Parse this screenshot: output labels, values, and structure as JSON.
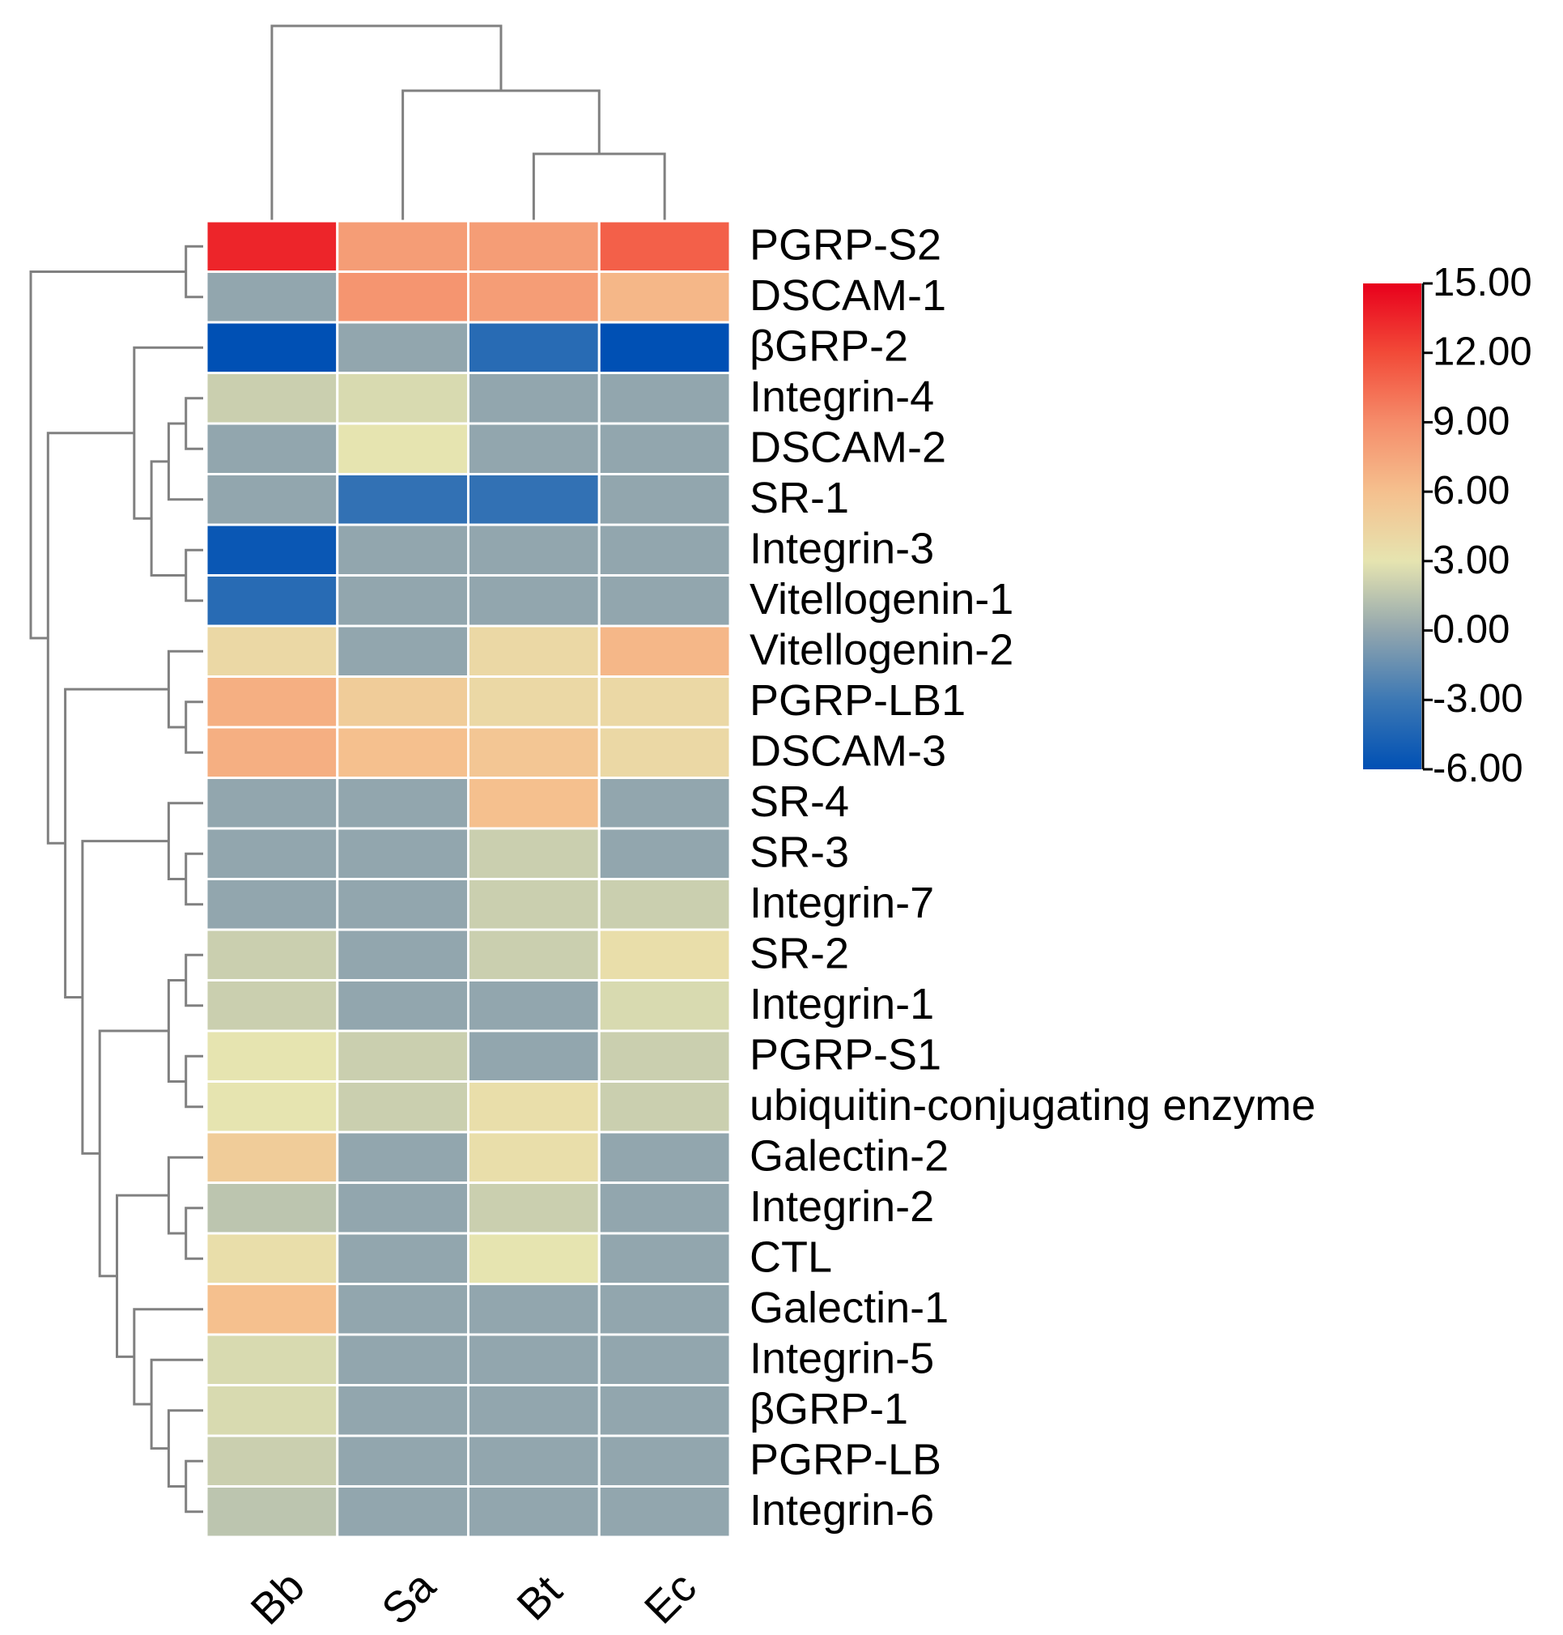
{
  "chart_data": {
    "type": "heatmap",
    "title": "",
    "columns": [
      "Bb",
      "Sa",
      "Bt",
      "Ec"
    ],
    "rows": [
      "PGRP-S2",
      "DSCAM-1",
      "βGRP-2",
      "Integrin-4",
      "DSCAM-2",
      "SR-1",
      "Integrin-3",
      "Vitellogenin-1",
      "Vitellogenin-2",
      "PGRP-LB1",
      "DSCAM-3",
      "SR-4",
      "SR-3",
      "Integrin-7",
      "SR-2",
      "Integrin-1",
      "PGRP-S1",
      "ubiquitin-conjugating enzyme",
      "Galectin-2",
      "Integrin-2",
      "CTL",
      "Galectin-1",
      "Integrin-5",
      "βGRP-1",
      "PGRP-LB",
      "Integrin-6"
    ],
    "values": [
      [
        13.5,
        8.0,
        8.0,
        11.0
      ],
      [
        0.0,
        8.5,
        8.0,
        6.5
      ],
      [
        -6.0,
        0.0,
        -4.0,
        -6.0
      ],
      [
        2.0,
        2.5,
        0.0,
        0.0
      ],
      [
        0.0,
        3.0,
        0.0,
        0.0
      ],
      [
        0.0,
        -3.5,
        -3.5,
        0.0
      ],
      [
        -5.5,
        0.0,
        0.0,
        0.0
      ],
      [
        -4.0,
        0.0,
        0.0,
        0.0
      ],
      [
        4.0,
        0.0,
        4.0,
        6.5
      ],
      [
        7.0,
        5.0,
        4.0,
        4.0
      ],
      [
        7.0,
        6.0,
        5.5,
        4.0
      ],
      [
        0.0,
        0.0,
        6.0,
        0.0
      ],
      [
        0.0,
        0.0,
        2.0,
        0.0
      ],
      [
        0.0,
        0.0,
        2.0,
        2.0
      ],
      [
        2.0,
        0.0,
        2.0,
        3.5
      ],
      [
        2.0,
        0.0,
        0.0,
        2.5
      ],
      [
        3.0,
        2.0,
        0.0,
        2.0
      ],
      [
        3.0,
        2.0,
        3.5,
        2.0
      ],
      [
        5.0,
        0.0,
        3.5,
        0.0
      ],
      [
        1.5,
        0.0,
        2.0,
        0.0
      ],
      [
        3.5,
        0.0,
        3.0,
        0.0
      ],
      [
        6.0,
        0.0,
        0.0,
        0.0
      ],
      [
        2.5,
        0.0,
        0.0,
        0.0
      ],
      [
        2.5,
        0.0,
        0.0,
        0.0
      ],
      [
        2.0,
        0.0,
        0.0,
        0.0
      ],
      [
        1.5,
        0.0,
        0.0,
        0.0
      ]
    ],
    "colorscale": {
      "min": -6.0,
      "max": 15.0,
      "stops": [
        {
          "value": -6.0,
          "color": "#0050b4"
        },
        {
          "value": -3.0,
          "color": "#3c78b4"
        },
        {
          "value": 0.0,
          "color": "#92a6ae"
        },
        {
          "value": 3.0,
          "color": "#e6e4b0"
        },
        {
          "value": 6.0,
          "color": "#f5c08e"
        },
        {
          "value": 9.0,
          "color": "#f58c6a"
        },
        {
          "value": 12.0,
          "color": "#f24a38"
        },
        {
          "value": 15.0,
          "color": "#e8001c"
        }
      ],
      "tick_labels": [
        "15.00",
        "12.00",
        "9.00",
        "6.00",
        "3.00",
        "0.00",
        "-3.00",
        "-6.00"
      ]
    },
    "column_dendrogram": "((Bb),(Sa,(Bt,Ec)))",
    "row_dendrogram": "clustered"
  }
}
